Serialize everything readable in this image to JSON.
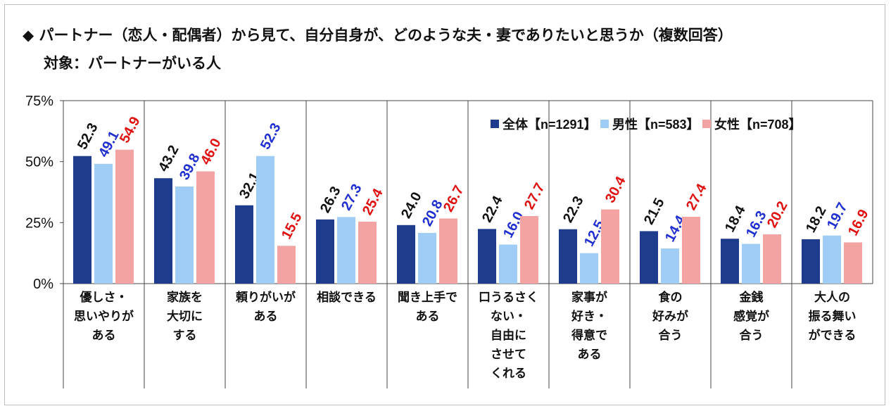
{
  "title": "◆ パートナー（恋人・配偶者）から見て、自分自身が、どのような夫・妻でありたいと思うか（複数回答）",
  "subtitle": "対象：パートナーがいる人",
  "chart_data": {
    "type": "bar",
    "categories": [
      [
        "優しさ・",
        "思いやりが",
        "ある"
      ],
      [
        "家族を",
        "大切に",
        "する"
      ],
      [
        "頼りがいが",
        "ある"
      ],
      [
        "相談できる"
      ],
      [
        "聞き上手で",
        "ある"
      ],
      [
        "口うるさく",
        "ない・",
        "自由に",
        "させて",
        "くれる"
      ],
      [
        "家事が",
        "好き・",
        "得意で",
        "ある"
      ],
      [
        "食の",
        "好みが",
        "合う"
      ],
      [
        "金銭",
        "感覚が",
        "合う"
      ],
      [
        "大人の",
        "振る舞い",
        "ができる"
      ]
    ],
    "series": [
      {
        "name": "全体【n=1291】",
        "color": "#1f3b8c",
        "label_color": "#111111",
        "values": [
          52.3,
          43.2,
          32.1,
          26.3,
          24.0,
          22.4,
          22.3,
          21.5,
          18.4,
          18.2
        ]
      },
      {
        "name": "男性【n=583】",
        "color": "#9fcdf5",
        "label_color": "#1f2fd0",
        "values": [
          49.1,
          39.8,
          52.3,
          27.3,
          20.8,
          16.0,
          12.5,
          14.4,
          16.3,
          19.7
        ]
      },
      {
        "name": "女性【n=708】",
        "color": "#f4a3a3",
        "label_color": "#e01010",
        "values": [
          54.9,
          46.0,
          15.5,
          25.4,
          26.7,
          27.7,
          30.4,
          27.4,
          20.2,
          16.9
        ]
      }
    ],
    "yticks": [
      "0%",
      "25%",
      "50%",
      "75%"
    ],
    "ylim": [
      0,
      75
    ],
    "legend_position": "top-right",
    "grid": "vertical category separators"
  }
}
